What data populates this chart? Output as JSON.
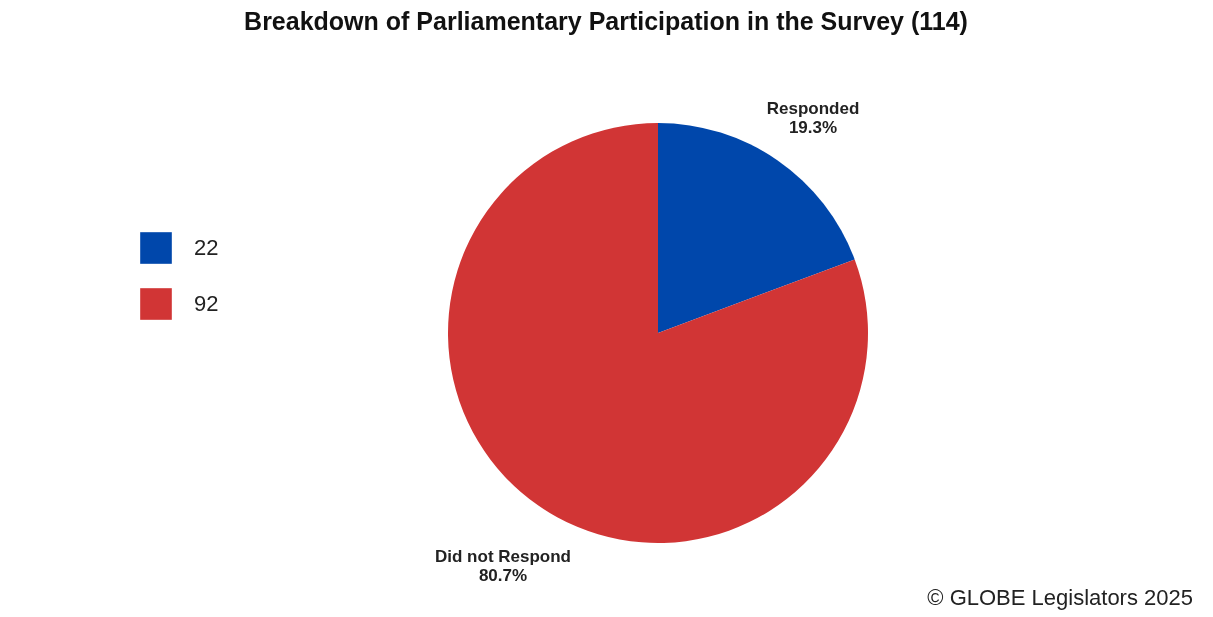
{
  "chart_data": {
    "type": "pie",
    "title": "Breakdown of Parliamentary Participation in the Survey (114)",
    "categories": [
      "22",
      "92"
    ],
    "values": [
      19.3,
      80.7
    ],
    "value_labels": [
      "Responded\n19.3%",
      "Did not Respond\n80.7%"
    ],
    "colors": [
      "#0047ab",
      "#d13535"
    ],
    "legend": "left",
    "annotations": [
      "© GLOBE Legislators 2025"
    ]
  }
}
